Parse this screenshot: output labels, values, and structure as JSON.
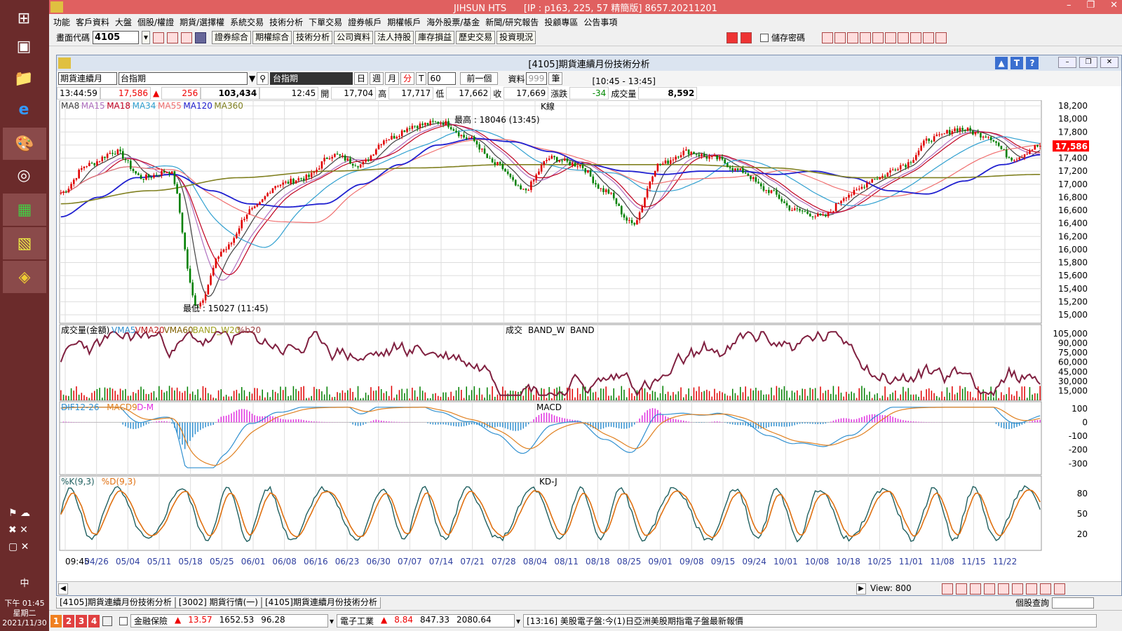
{
  "window": {
    "app_title": "JIHSUN HTS",
    "connection": "[IP : p163, 225, 57 精簡版] 8657.20211201"
  },
  "menu": [
    "功能",
    "客戶資料",
    "大盤",
    "個股/權證",
    "期貨/選擇權",
    "系統交易",
    "技術分析",
    "下單交易",
    "證券帳戶",
    "期權帳戶",
    "海外股票/基金",
    "新聞/研究報告",
    "投顧專區",
    "公告事項"
  ],
  "toolbar": {
    "code_label": "畫面代碼",
    "code_value": "4105",
    "buttons": [
      "證券綜合",
      "期權綜合",
      "技術分析",
      "公司資料",
      "法人持股",
      "庫存損益",
      "歷史交易",
      "投資現況"
    ],
    "save_password": "儲存密碼"
  },
  "chart_window": {
    "title": "[4105]期貨連續月份技術分析",
    "product_select": "期貨連續月",
    "product_name": "台指期",
    "product_display": "台指期",
    "period_day": "日",
    "period_week": "週",
    "period_month": "月",
    "period_minute": "分",
    "period_tick": "T",
    "interval": "60",
    "prev_button": "前一個",
    "data_label": "資料",
    "data_count": "999",
    "data_unit": "筆",
    "session": "[10:45 - 13:45]"
  },
  "quote": {
    "time": "13:44:59",
    "price": "17,586",
    "change": "256",
    "volume_total": "103,434",
    "bar_time": "12:45",
    "open_label": "開",
    "open": "17,704",
    "high_label": "高",
    "high": "17,717",
    "low_label": "低",
    "low": "17,662",
    "close_label": "收",
    "close": "17,669",
    "chg_label": "漲跌",
    "chg": "-34",
    "vol_label": "成交量",
    "vol": "8,592"
  },
  "chart_data": [
    {
      "type": "candlestick",
      "title": "K線",
      "legend": [
        {
          "name": "MA8",
          "color": "#404040"
        },
        {
          "name": "MA15",
          "color": "#b070c0"
        },
        {
          "name": "MA18",
          "color": "#c00020"
        },
        {
          "name": "MA34",
          "color": "#30a0d0"
        },
        {
          "name": "MA55",
          "color": "#f07070"
        },
        {
          "name": "MA120",
          "color": "#2020d0"
        },
        {
          "name": "MA360",
          "color": "#808020"
        }
      ],
      "ylim": [
        15000,
        18200
      ],
      "yticks": [
        18200,
        18000,
        17800,
        17600,
        17400,
        17200,
        17000,
        16800,
        16600,
        16400,
        16200,
        16000,
        15800,
        15600,
        15400,
        15200,
        15000
      ],
      "last_price": "17,586",
      "annotations": {
        "high": "最高 : 18046 (13:45)",
        "low": "最低 : 15027 (11:45)"
      },
      "x_ticks": [
        "09:45",
        "04/26",
        "05/04",
        "05/11",
        "05/18",
        "05/25",
        "06/01",
        "06/08",
        "06/16",
        "06/23",
        "06/30",
        "07/07",
        "07/14",
        "07/21",
        "07/28",
        "08/04",
        "08/11",
        "08/18",
        "08/25",
        "09/01",
        "09/08",
        "09/15",
        "09/24",
        "10/01",
        "10/08",
        "10/18",
        "10/25",
        "11/01",
        "11/08",
        "11/15",
        "11/22"
      ],
      "close_anchors": [
        16870,
        17300,
        17500,
        17100,
        17200,
        15150,
        16000,
        16600,
        17000,
        17100,
        17450,
        17300,
        17700,
        17900,
        17950,
        17700,
        17300,
        16900,
        17400,
        17300,
        16900,
        16400,
        17300,
        17500,
        17400,
        17200,
        16900,
        16600,
        16500,
        16850,
        17100,
        17300,
        17700,
        17850,
        17750,
        17400,
        17586
      ],
      "ma120_anchors": [
        16500,
        16800,
        17100,
        17150,
        16900,
        16700,
        16650,
        16700,
        17000,
        17300,
        17600,
        17700,
        17650,
        17500,
        17300,
        17200,
        17150,
        17200,
        17200,
        17150,
        17200,
        17100,
        16900,
        16850,
        17050,
        17300,
        17450
      ],
      "ma360_anchors": [
        16700,
        16900,
        17100,
        17200,
        17250,
        17300,
        17300,
        17300,
        17250,
        17100,
        17100,
        17150
      ]
    },
    {
      "type": "bar",
      "title": "成交量(金額)",
      "center_title": "成交",
      "center_legend": [
        "BAND_W",
        "BAND"
      ],
      "legend": [
        {
          "name": "VMA5",
          "color": "#3090d0"
        },
        {
          "name": "VMA20",
          "color": "#c02020"
        },
        {
          "name": "VMA60",
          "color": "#806000"
        },
        {
          "name": "BAND_W20",
          "color": "#a0a020"
        },
        {
          "name": "%b20",
          "color": "#a04040"
        }
      ],
      "yticks": [
        105000,
        90000,
        75000,
        60000,
        45000,
        30000,
        15000
      ],
      "ytick_labels": [
        "105,000",
        "90,000",
        "75,000",
        "60,000",
        "45,000",
        "30,000",
        "15,000"
      ],
      "ylim": [
        0,
        115000
      ]
    },
    {
      "type": "line",
      "title": "MACD",
      "legend": [
        {
          "name": "DIF12-26",
          "color": "#3090d0"
        },
        {
          "name": "MACD9",
          "color": "#e08020"
        },
        {
          "name": "D-M",
          "color": "#e030e0"
        }
      ],
      "yticks": [
        100,
        0,
        -100,
        -200,
        -300
      ],
      "ylim": [
        -380,
        150
      ]
    },
    {
      "type": "line",
      "title": "KD-J",
      "legend": [
        {
          "name": "%K(9,3)",
          "color": "#206060"
        },
        {
          "name": "%D(9,3)",
          "color": "#e07010"
        }
      ],
      "yticks": [
        80,
        50,
        20
      ],
      "ylim": [
        0,
        100
      ]
    }
  ],
  "scroll": {
    "view_label": "View:",
    "view_value": "800"
  },
  "tabs": [
    "[4105]期貨連續月份技術分析",
    "[3002] 期貨行情(一)",
    "[4105]期貨連續月份技術分析"
  ],
  "stock_query": "個股查詢",
  "status": {
    "pages": [
      "1",
      "2",
      "3",
      "4"
    ],
    "s1_name": "金融保險",
    "s1_chg": "13.57",
    "s1_val": "1652.53",
    "s1_vol": "96.28",
    "s2_name": "電子工業",
    "s2_chg": "8.84",
    "s2_val": "847.33",
    "s2_vol": "2080.64",
    "news": "[13:16] 美股電子盤:今(1)日亞洲美股期指電子盤最新報價"
  },
  "clock": {
    "time": "下午 01:45",
    "weekday": "星期二",
    "date": "2021/11/30",
    "ime": "中"
  },
  "colors": {
    "up": "#e00000",
    "down": "#008000",
    "price_tag": "#ff0000",
    "titlebar": "#e06060",
    "taskbar": "#6b2b2b"
  }
}
